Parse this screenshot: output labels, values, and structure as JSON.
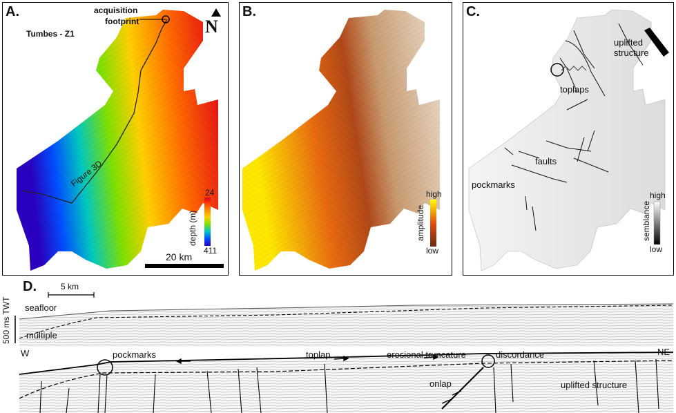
{
  "panelA": {
    "label": "A.",
    "area_name": "Tumbes - Z1",
    "callout_line1": "acquisition",
    "callout_line2": "footprint",
    "north": "N",
    "track_label": "Figure 3D",
    "colorbar_title": "depth (m)",
    "colorbar_top": "24",
    "colorbar_bottom": "411",
    "scale_label": "20 km"
  },
  "panelB": {
    "label": "B.",
    "colorbar_title": "amplitude",
    "colorbar_top": "high",
    "colorbar_bottom": "low"
  },
  "panelC": {
    "label": "C.",
    "uplift_line1": "uplifted",
    "uplift_line2": "structure",
    "toplaps": "toplaps",
    "faults": "faults",
    "pockmarks": "pockmarks",
    "colorbar_title": "semblance",
    "colorbar_top": "high",
    "colorbar_bottom": "low"
  },
  "panelD": {
    "label": "D.",
    "scale_label": "5 km",
    "vscale_label": "500 ms TWT",
    "seafloor": "seafloor",
    "multiple": "multiple",
    "west": "W",
    "northeast": "NE",
    "pockmarks": "pockmarks",
    "toplap": "toplap",
    "erosional_truncature": "erosional truncature",
    "discordance": "discordance",
    "onlap": "onlap",
    "uplifted_structure": "uplifted structure"
  },
  "colors": {
    "depth_ramp": [
      "#e0001a",
      "#ff6a00",
      "#ffd000",
      "#80e000",
      "#00c8c0",
      "#0050ff",
      "#2a00c0"
    ],
    "amplitude_ramp": [
      "#ffff00",
      "#e05010",
      "#a03010",
      "#6a2a10"
    ],
    "semblance_ramp": [
      "#ffffff",
      "#000000"
    ]
  }
}
